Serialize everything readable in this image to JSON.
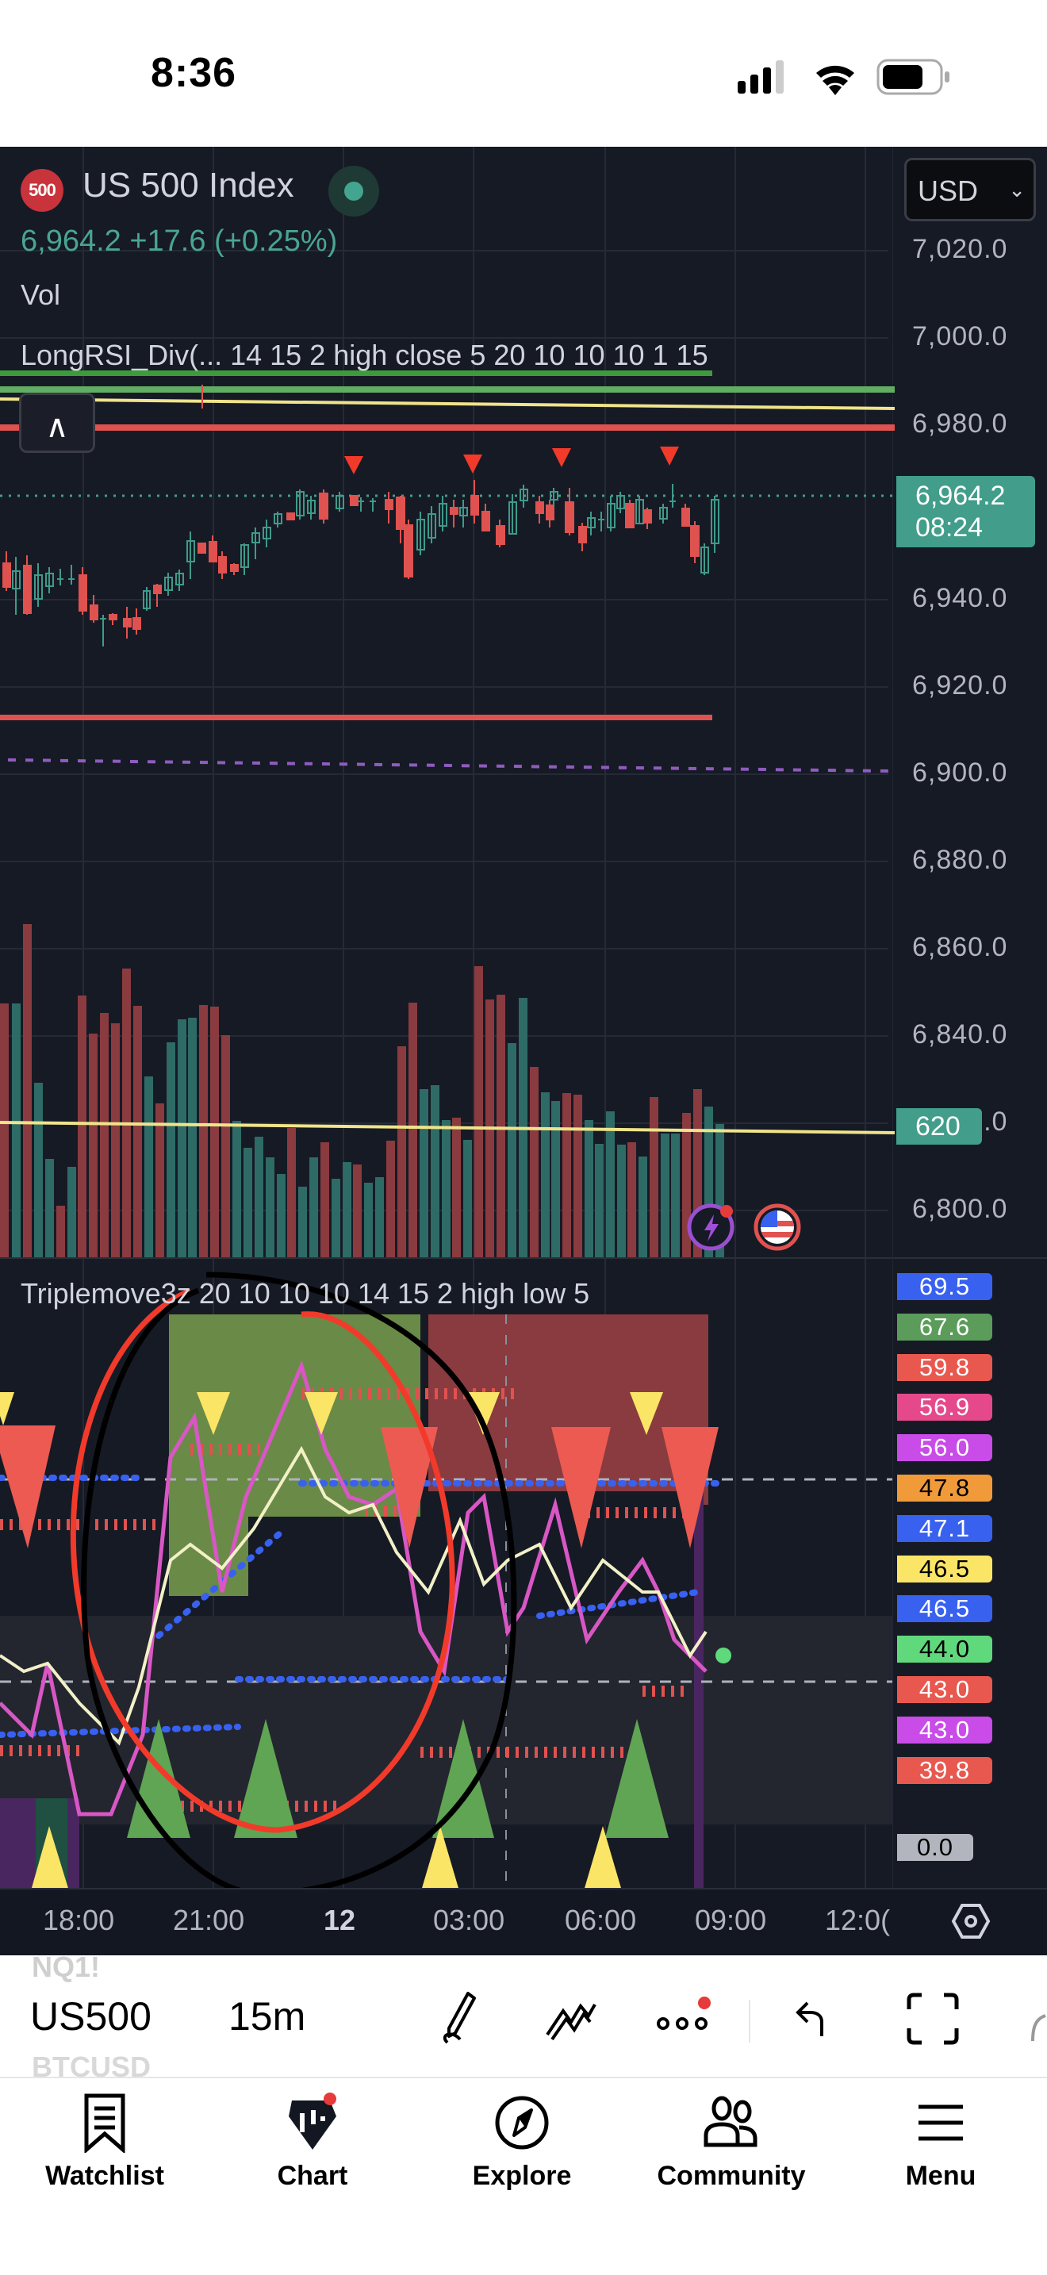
{
  "status_bar": {
    "time": "8:36",
    "icons": [
      "cellular-signal-icon",
      "wifi-icon",
      "battery-icon"
    ]
  },
  "chart": {
    "symbol_logo_text": "500",
    "title": "US 500 Index",
    "market_status": "open",
    "price_line": "6,964.2  +17.6 (+0.25%)",
    "last_price": "6,964.2",
    "change": "+17.6",
    "change_pct": "(+0.25%)",
    "volume_label": "Vol",
    "indicator_1": "LongRSI_Div(...  14 15 2 high close 5 20 10 10 10 1 15",
    "indicator_2": "Triplemove3z 20 10 10 10 14 15 2 high low 5",
    "currency": "USD",
    "price_axis": [
      "7,020.0",
      "7,000.0",
      "6,980.0",
      "6,940.0",
      "6,920.0",
      "6,900.0",
      "6,880.0",
      "6,860.0",
      "6,840.0",
      "6,820.0",
      "6,800.0"
    ],
    "price_tag": {
      "price": "6,964.2",
      "countdown": "08:24",
      "color": "#429d8a"
    },
    "volume_tag": {
      "value": "620",
      "color": "#429d8a"
    },
    "oscillator_tags": [
      {
        "value": "69.5",
        "bg": "#3861f0",
        "fg": "#ffffff"
      },
      {
        "value": "67.6",
        "bg": "#5b9c5a",
        "fg": "#ffffff"
      },
      {
        "value": "59.8",
        "bg": "#e8584f",
        "fg": "#ffffff"
      },
      {
        "value": "56.9",
        "bg": "#e5498b",
        "fg": "#ffffff"
      },
      {
        "value": "56.0",
        "bg": "#c94be8",
        "fg": "#ffffff"
      },
      {
        "value": "47.8",
        "bg": "#f09a3a",
        "fg": "#000000"
      },
      {
        "value": "47.1",
        "bg": "#3861f0",
        "fg": "#ffffff"
      },
      {
        "value": "46.5",
        "bg": "#fbe567",
        "fg": "#000000"
      },
      {
        "value": "46.5",
        "bg": "#3861f0",
        "fg": "#ffffff"
      },
      {
        "value": "44.0",
        "bg": "#60d97d",
        "fg": "#000000"
      },
      {
        "value": "43.0",
        "bg": "#e8584f",
        "fg": "#ffffff"
      },
      {
        "value": "43.0",
        "bg": "#c94be8",
        "fg": "#ffffff"
      },
      {
        "value": "39.8",
        "bg": "#e8584f",
        "fg": "#ffffff"
      }
    ],
    "oscillator_zero": "0.0",
    "time_axis": [
      "18:00",
      "21:00",
      "12",
      "03:00",
      "06:00",
      "09:00",
      "12:0("
    ],
    "colors": {
      "up": "#3f8f80",
      "down": "#e0524f",
      "background": "#161a25",
      "grid": "#262a36"
    }
  },
  "toolbar": {
    "ghost_symbol_above": "NQ1!",
    "symbol": "US500",
    "interval": "15m",
    "ghost_symbol_below": "BTCUSD",
    "tools": [
      "draw-icon",
      "indicators-icon",
      "more-icon",
      "undo-icon",
      "fullscreen-icon"
    ]
  },
  "tab_bar": {
    "items": [
      {
        "label": "Watchlist",
        "icon": "watchlist-icon"
      },
      {
        "label": "Chart",
        "icon": "chart-icon"
      },
      {
        "label": "Explore",
        "icon": "compass-icon"
      },
      {
        "label": "Community",
        "icon": "community-icon"
      },
      {
        "label": "Menu",
        "icon": "menu-icon"
      }
    ]
  }
}
